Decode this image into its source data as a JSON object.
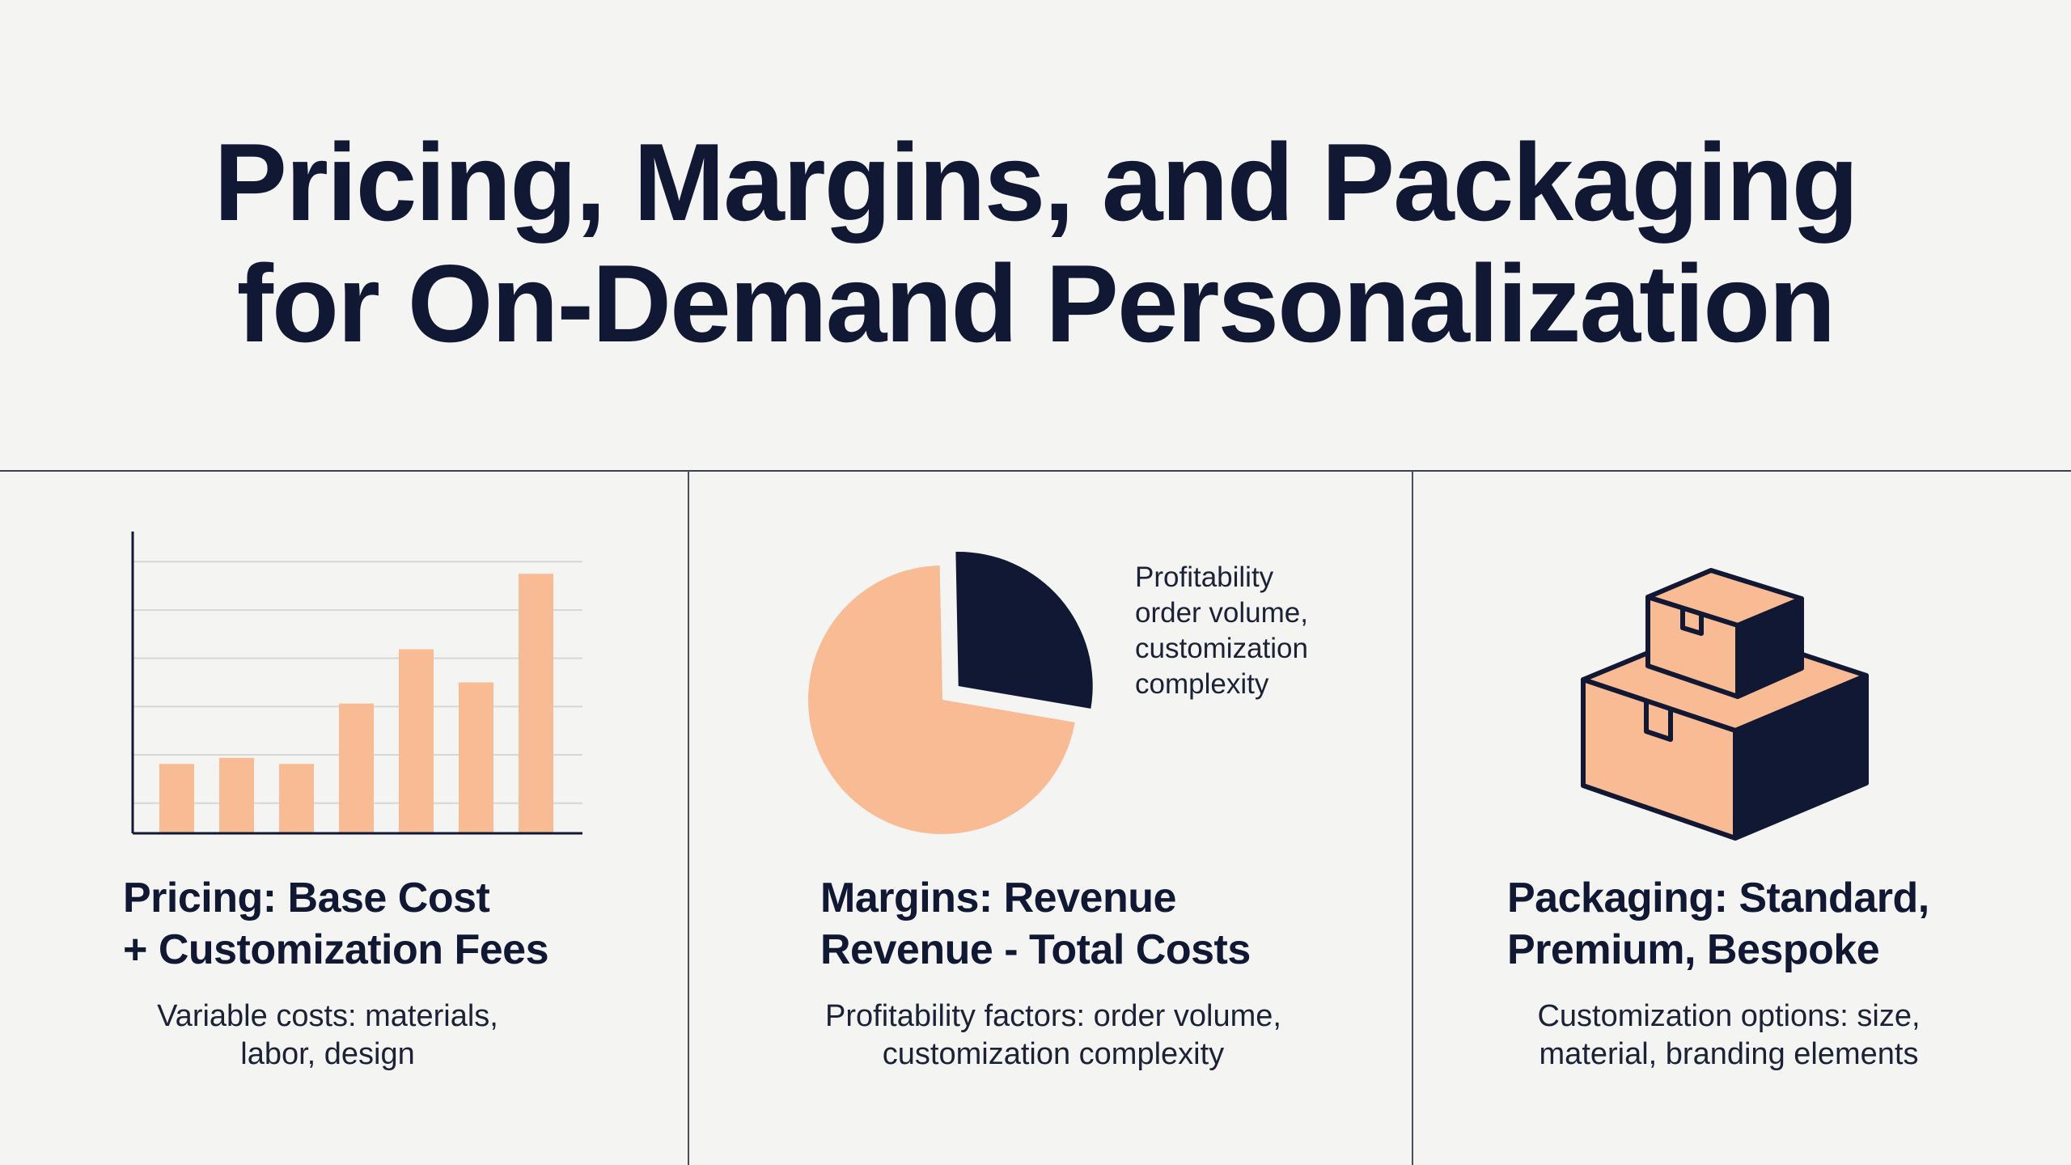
{
  "title": {
    "line1": "Pricing, Margins, and Packaging",
    "line2": "for On-Demand Personalization"
  },
  "colors": {
    "navy": "#111833",
    "peach": "#f9bb93",
    "background": "#f4f4f3"
  },
  "pricing": {
    "heading_line1": "Pricing: Base Cost",
    "heading_line2": "+ Customization Fees",
    "body_line1": "Variable costs: materials,",
    "body_line2": "labor, design",
    "icon": "bar-chart-icon"
  },
  "margins": {
    "heading_line1": "Margins: Revenue",
    "heading_line2": "Revenue - Total Costs",
    "body_line1": "Profitability factors: order volume,",
    "body_line2": "customization complexity",
    "note_line1": "Profitability",
    "note_line2": "order volume,",
    "note_line3": "customization",
    "note_line4": "complexity",
    "icon": "pie-chart-icon"
  },
  "packaging": {
    "heading_line1": "Packaging: Standard,",
    "heading_line2": "Premium, Bespoke",
    "body_line1": "Customization options: size,",
    "body_line2": "material, branding elements",
    "icon": "stacked-boxes-icon"
  },
  "chart_data": [
    {
      "type": "bar",
      "categories": [
        "",
        "",
        "",
        "",
        "",
        "",
        ""
      ],
      "values": [
        23,
        25,
        23,
        43,
        61,
        50,
        86
      ],
      "ylim": [
        0,
        100
      ],
      "grid": true,
      "legend": "none"
    },
    {
      "type": "pie",
      "values": [
        72,
        28
      ],
      "colors": [
        "#f9bb93",
        "#111833"
      ],
      "exploded_slice": 1,
      "legend": "none"
    }
  ]
}
